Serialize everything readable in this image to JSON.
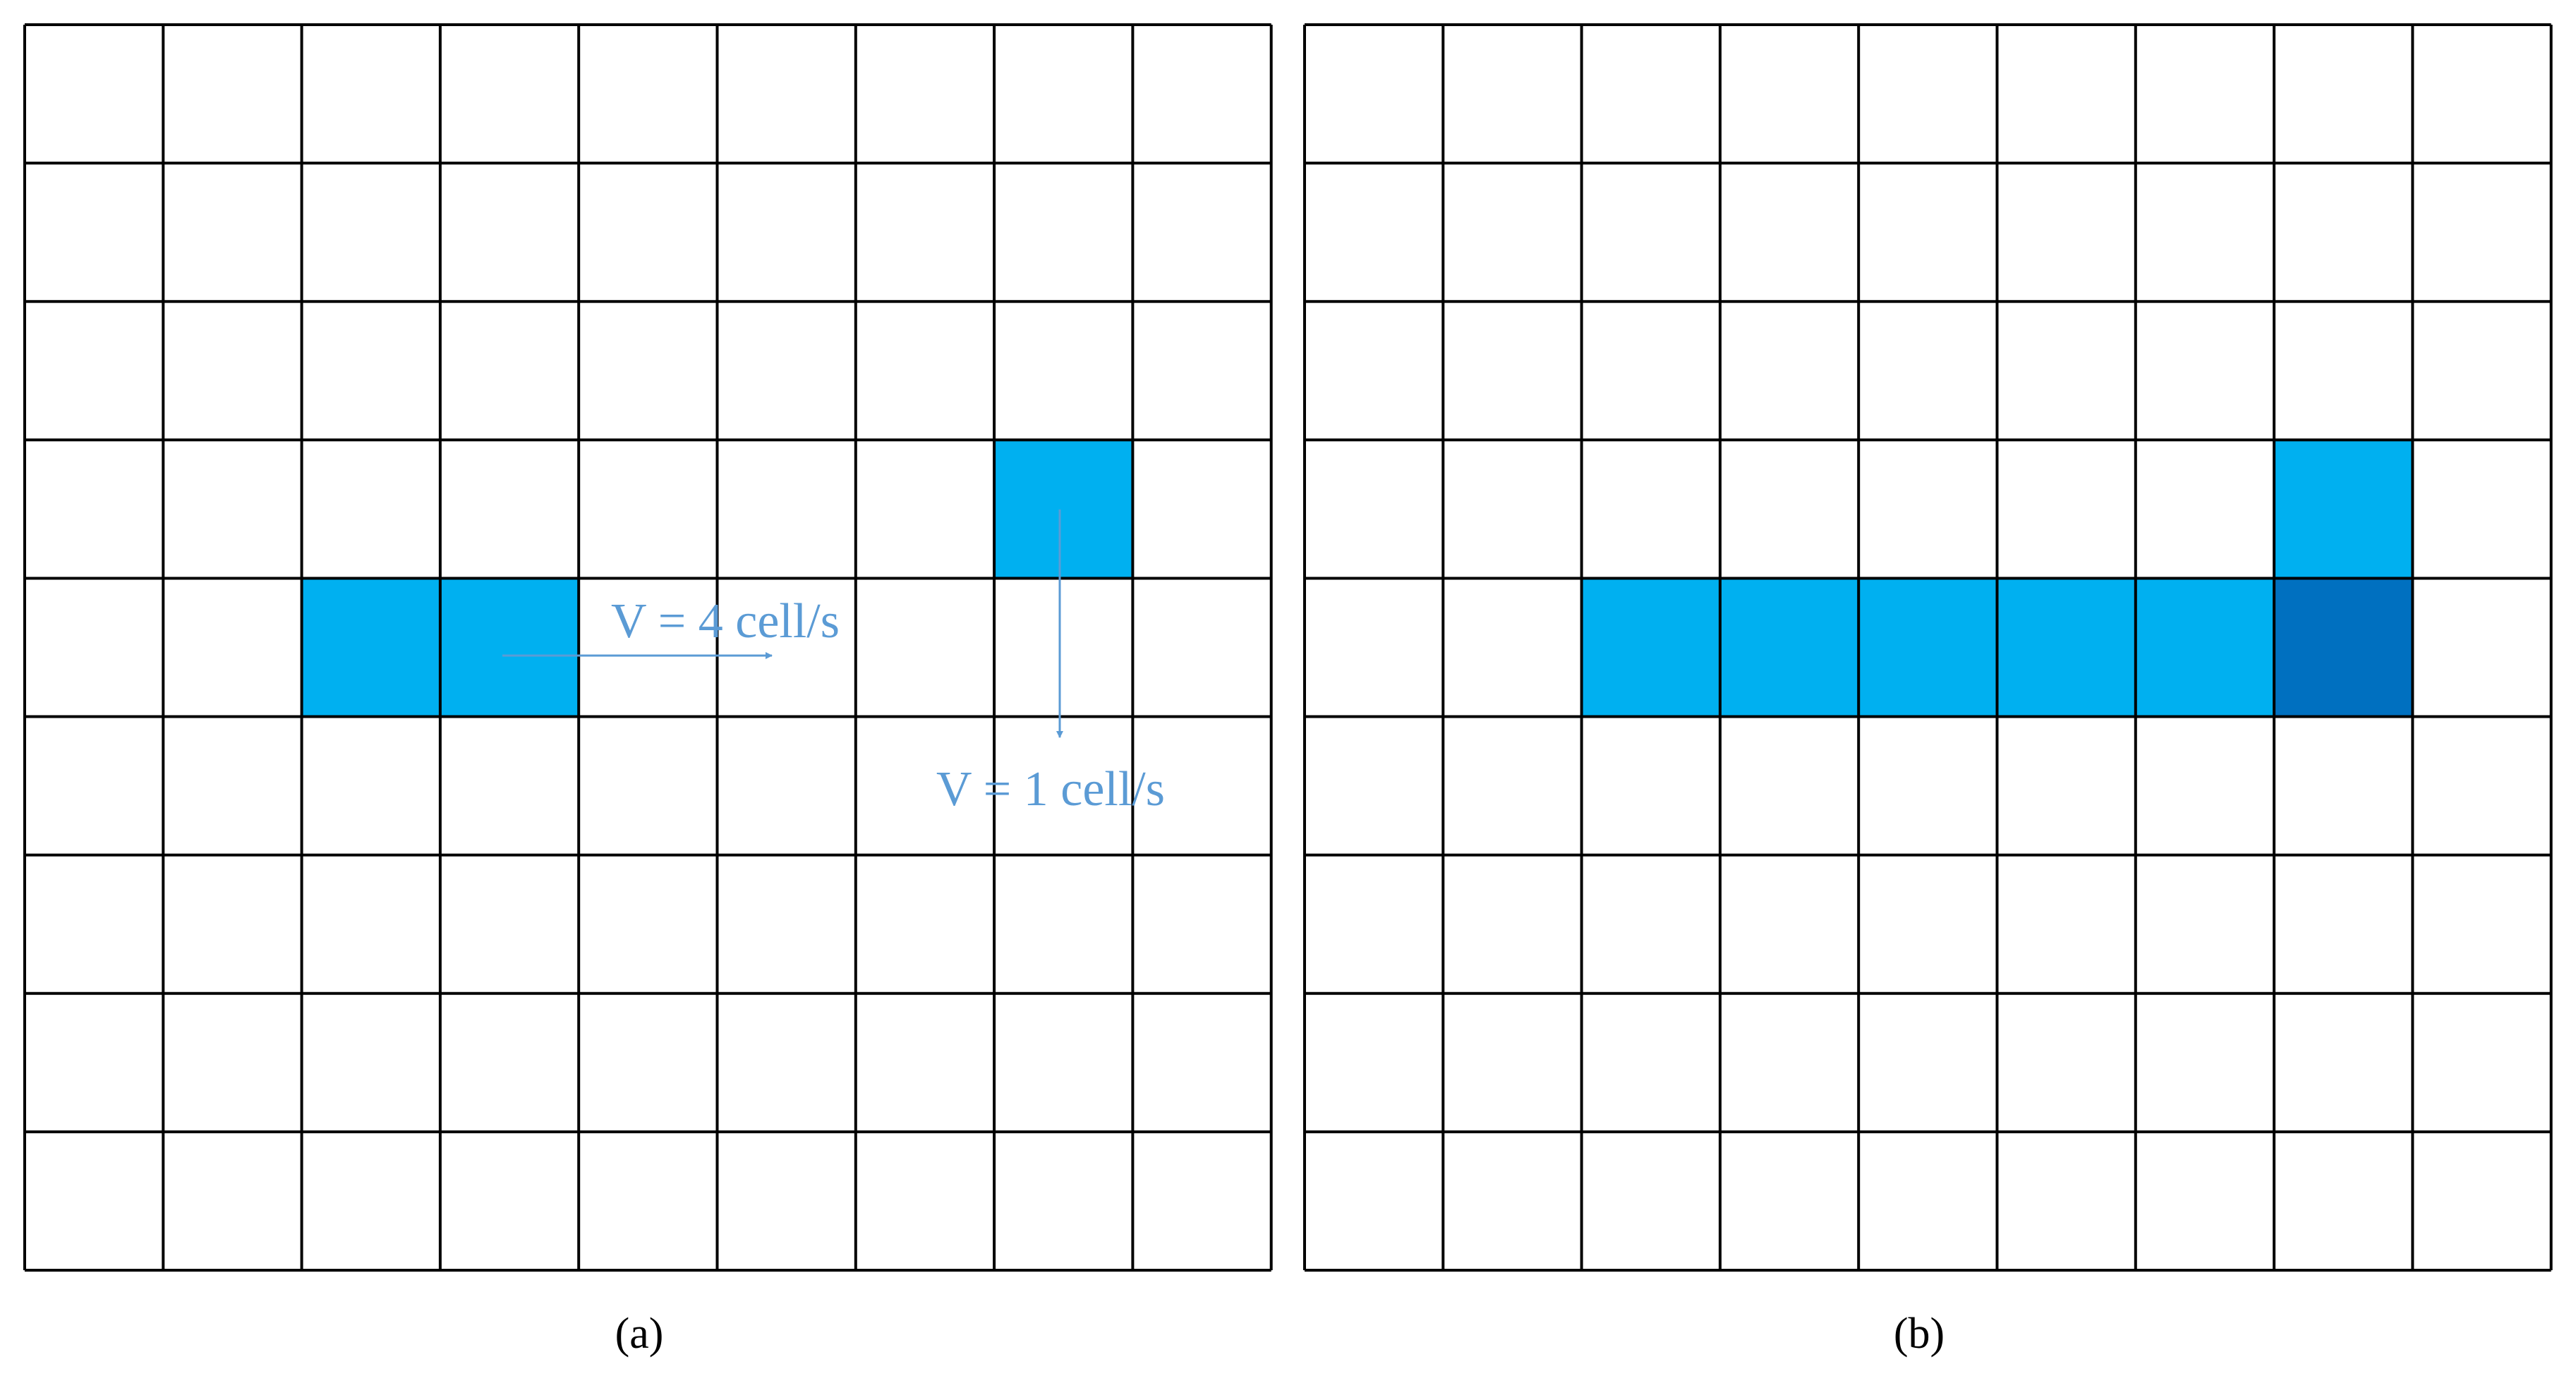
{
  "panels": [
    {
      "caption": "(a)",
      "annotations": [
        "V = 4 cell/s",
        "V = 1 cell/s"
      ]
    },
    {
      "caption": "(b)"
    }
  ]
}
